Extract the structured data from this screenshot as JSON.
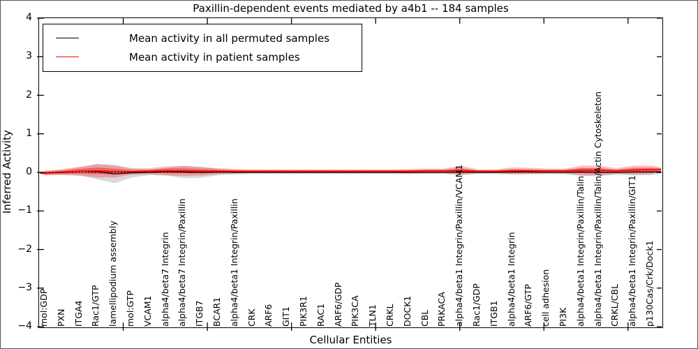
{
  "title": "Paxillin-dependent events mediated by a4b1 -- 184 samples",
  "colors": {
    "patient": "#ff0000",
    "permuted": "#000000",
    "patient_band_outer": "rgba(255,0,0,0.25)",
    "patient_band_inner": "rgba(255,0,0,0.40)",
    "permuted_band": "rgba(130,130,130,0.30)",
    "zero_line": "#000000",
    "background": "#ffffff"
  },
  "legend": {
    "items": [
      {
        "label": "Mean activity in all permuted samples",
        "color": "#000000"
      },
      {
        "label": "Mean activity in patient samples",
        "color": "#ff0000"
      }
    ]
  },
  "chart_data": {
    "type": "line",
    "title": "Paxillin-dependent events mediated by a4b1 -- 184 samples",
    "xlabel": "Cellular Entities",
    "ylabel": "Inferred Activity",
    "ylim": [
      -4,
      4
    ],
    "yticks": [
      4,
      3,
      2,
      1,
      0,
      -1,
      -2,
      -3,
      -4
    ],
    "x_axis_range": [
      0,
      37
    ],
    "x_major_tick_values": [
      5,
      10,
      15,
      20,
      25,
      30,
      35
    ],
    "grid": false,
    "legend_position": "upper left",
    "zero_line": {
      "y": 0,
      "style": "dotted",
      "color": "#000000"
    },
    "categories": [
      "mol:GDP",
      "PXN",
      "ITGA4",
      "Rac1/GTP",
      "lamellipodium assembly",
      "mol:GTP",
      "VCAM1",
      "alpha4/beta7 Integrin",
      "alpha4/beta7 Integrin/Paxillin",
      "ITGB7",
      "BCAR1",
      "alpha4/beta1 Integrin/Paxillin",
      "CRK",
      "ARF6",
      "GIT1",
      "PIK3R1",
      "RAC1",
      "ARF6/GDP",
      "PIK3CA",
      "TLN1",
      "CRKL",
      "DOCK1",
      "CBL",
      "PRKACA",
      "alpha4/beta1 Integrin/Paxillin/VCAM1",
      "Rac1/GDP",
      "ITGB1",
      "alpha4/beta1 Integrin",
      "ARF6/GTP",
      "cell adhesion",
      "PI3K",
      "alpha4/beta1 Integrin/Paxillin/Talin",
      "alpha4/beta1 Integrin/Paxillin/Talin/Actin Cytoskeleton",
      "CRKL/CBL",
      "alpha4/beta1 Integrin/Paxillin/GIT1",
      "p130Cas/Crk/Dock1"
    ],
    "series": [
      {
        "name": "Mean activity in all permuted samples",
        "color": "#000000",
        "values": [
          -0.01,
          0.0,
          0.03,
          0.02,
          -0.04,
          -0.01,
          0.0,
          0.02,
          0.01,
          0.0,
          0.01,
          0.0,
          0.0,
          0.0,
          0.0,
          0.0,
          0.0,
          0.0,
          0.0,
          0.0,
          0.0,
          0.0,
          0.0,
          0.0,
          0.01,
          0.0,
          0.0,
          0.01,
          0.01,
          0.0,
          0.0,
          0.01,
          0.0,
          0.0,
          0.01,
          0.01
        ],
        "std": [
          0.05,
          0.06,
          0.1,
          0.2,
          0.24,
          0.12,
          0.07,
          0.1,
          0.16,
          0.14,
          0.08,
          0.05,
          0.04,
          0.04,
          0.04,
          0.04,
          0.04,
          0.04,
          0.04,
          0.04,
          0.04,
          0.04,
          0.04,
          0.04,
          0.07,
          0.04,
          0.04,
          0.06,
          0.06,
          0.05,
          0.05,
          0.1,
          0.1,
          0.06,
          0.09,
          0.08
        ]
      },
      {
        "name": "Mean activity in patient samples",
        "color": "#ff0000",
        "values": [
          -0.02,
          0.01,
          0.03,
          0.04,
          0.02,
          0.02,
          0.03,
          0.04,
          0.04,
          0.03,
          0.03,
          0.03,
          0.03,
          0.03,
          0.03,
          0.03,
          0.03,
          0.03,
          0.03,
          0.03,
          0.03,
          0.03,
          0.04,
          0.04,
          0.05,
          0.03,
          0.03,
          0.04,
          0.04,
          0.04,
          0.04,
          0.05,
          0.05,
          0.04,
          0.06,
          0.07
        ],
        "std": [
          0.06,
          0.08,
          0.12,
          0.17,
          0.15,
          0.08,
          0.08,
          0.12,
          0.13,
          0.11,
          0.08,
          0.06,
          0.05,
          0.05,
          0.05,
          0.05,
          0.05,
          0.05,
          0.05,
          0.05,
          0.05,
          0.06,
          0.06,
          0.06,
          0.12,
          0.05,
          0.05,
          0.09,
          0.08,
          0.06,
          0.06,
          0.13,
          0.12,
          0.07,
          0.12,
          0.11
        ]
      }
    ],
    "inner_band_factor": 0.5,
    "edge_taper": {
      "left_std": 0.015,
      "right_std": 0.05
    }
  }
}
